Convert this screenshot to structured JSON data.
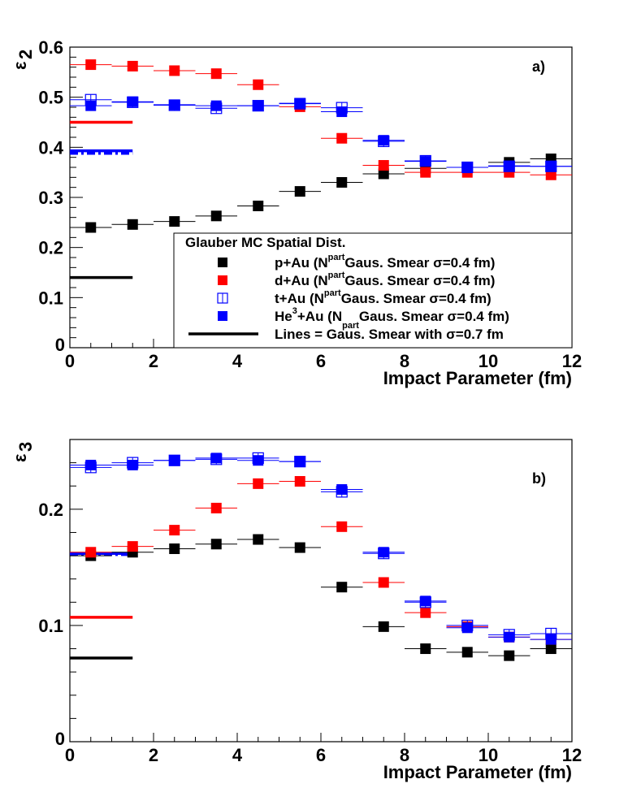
{
  "chart_data": [
    {
      "type": "scatter",
      "panel_label": "a)",
      "xlabel": "Impact Parameter (fm)",
      "ylabel": "ε",
      "ylabel_sub": "2",
      "xlim": [
        0,
        12
      ],
      "ylim": [
        0,
        0.6
      ],
      "xticks": [
        "0",
        "2",
        "4",
        "6",
        "8",
        "10",
        "12"
      ],
      "yticks": [
        "0",
        "0.1",
        "0.2",
        "0.3",
        "0.4",
        "0.5",
        "0.6"
      ],
      "ytick_values": [
        0,
        0.1,
        0.2,
        0.3,
        0.4,
        0.5,
        0.6
      ],
      "x": [
        0.5,
        1.5,
        2.5,
        3.5,
        4.5,
        5.5,
        6.5,
        7.5,
        8.5,
        9.5,
        10.5,
        11.5
      ],
      "series": [
        {
          "name": "p+Au",
          "color": "#000000",
          "marker": "filled",
          "values": [
            0.24,
            0.246,
            0.252,
            0.263,
            0.283,
            0.312,
            0.33,
            0.347,
            0.358,
            0.36,
            0.37,
            0.377
          ]
        },
        {
          "name": "d+Au",
          "color": "#ff0000",
          "marker": "filled",
          "values": [
            0.565,
            0.562,
            0.553,
            0.547,
            0.525,
            0.481,
            0.418,
            0.364,
            0.35,
            0.35,
            0.35,
            0.345
          ]
        },
        {
          "name": "t+Au",
          "color": "#0000ff",
          "marker": "open",
          "values": [
            0.495,
            0.49,
            0.484,
            0.478,
            0.483,
            0.487,
            0.479,
            0.412,
            0.373,
            0.36,
            0.362,
            0.362
          ]
        },
        {
          "name": "He3+Au",
          "color": "#0000ff",
          "marker": "filled",
          "values": [
            0.483,
            0.491,
            0.485,
            0.483,
            0.483,
            0.488,
            0.471,
            0.414,
            0.372,
            0.36,
            0.363,
            0.362
          ]
        }
      ],
      "reference_lines": [
        {
          "name": "d+Au σ=0.7",
          "color": "#ff0000",
          "style": "solid",
          "value": 0.45,
          "x_range": [
            0,
            1.5
          ]
        },
        {
          "name": "t+Au σ=0.7",
          "color": "#0000ff",
          "style": "dashdot",
          "value": 0.388,
          "x_range": [
            0,
            1.5
          ]
        },
        {
          "name": "He3+Au σ=0.7",
          "color": "#0000ff",
          "style": "solid",
          "value": 0.393,
          "x_range": [
            0,
            1.5
          ]
        },
        {
          "name": "p+Au σ=0.7",
          "color": "#000000",
          "style": "solid",
          "value": 0.14,
          "x_range": [
            0,
            1.5
          ]
        }
      ],
      "legend": {
        "title": "Glauber MC Spatial Dist.",
        "placement": "bottom-right",
        "entries": [
          {
            "pre": "p+Au (N",
            "sup": "part",
            "post": "Gaus. Smear  σ=0.4 fm)",
            "color": "#000000",
            "marker": "filled"
          },
          {
            "pre": "d+Au (N",
            "sup": "part",
            "post": "Gaus. Smear  σ=0.4 fm)",
            "color": "#ff0000",
            "marker": "filled"
          },
          {
            "pre": "t+Au (N",
            "sup": "part",
            "post": "Gaus. Smear  σ=0.4 fm)",
            "color": "#0000ff",
            "marker": "open"
          },
          {
            "pre": "He",
            "sup": "3",
            "mid": "+Au (N",
            "sub": "part",
            "post": "Gaus. Smear  σ=0.4 fm)",
            "color": "#0000ff",
            "marker": "filled"
          },
          {
            "pre": "Lines = Gaus. Smear with σ=0.7 fm",
            "color": "#000000",
            "marker": "line"
          }
        ]
      }
    },
    {
      "type": "scatter",
      "panel_label": "b)",
      "xlabel": "Impact Parameter (fm)",
      "ylabel": "ε",
      "ylabel_sub": "3",
      "xlim": [
        0,
        12
      ],
      "ylim": [
        0,
        0.26
      ],
      "xticks": [
        "0",
        "2",
        "4",
        "6",
        "8",
        "10",
        "12"
      ],
      "yticks": [
        "0",
        "0.1",
        "0.2"
      ],
      "ytick_values": [
        0,
        0.1,
        0.2
      ],
      "x": [
        0.5,
        1.5,
        2.5,
        3.5,
        4.5,
        5.5,
        6.5,
        7.5,
        8.5,
        9.5,
        10.5,
        11.5
      ],
      "series": [
        {
          "name": "p+Au",
          "color": "#000000",
          "marker": "filled",
          "values": [
            0.16,
            0.163,
            0.166,
            0.17,
            0.174,
            0.167,
            0.133,
            0.099,
            0.08,
            0.077,
            0.074,
            0.08
          ]
        },
        {
          "name": "d+Au",
          "color": "#ff0000",
          "marker": "filled",
          "values": [
            0.163,
            0.168,
            0.182,
            0.201,
            0.222,
            0.224,
            0.185,
            0.137,
            0.111,
            0.099,
            0.09,
            0.088
          ]
        },
        {
          "name": "t+Au",
          "color": "#0000ff",
          "marker": "open",
          "values": [
            0.236,
            0.24,
            0.242,
            0.243,
            0.244,
            0.241,
            0.215,
            0.162,
            0.12,
            0.1,
            0.092,
            0.093
          ]
        },
        {
          "name": "He3+Au",
          "color": "#0000ff",
          "marker": "filled",
          "values": [
            0.238,
            0.238,
            0.242,
            0.244,
            0.242,
            0.241,
            0.217,
            0.163,
            0.121,
            0.098,
            0.09,
            0.088
          ]
        }
      ],
      "reference_lines": [
        {
          "name": "t+Au σ=0.7",
          "color": "#0000ff",
          "style": "dashdot",
          "value": 0.161,
          "x_range": [
            0,
            1.5
          ]
        },
        {
          "name": "He3+Au σ=0.7",
          "color": "#0000ff",
          "style": "solid",
          "value": 0.162,
          "x_range": [
            0,
            1.5
          ]
        },
        {
          "name": "d+Au σ=0.7",
          "color": "#ff0000",
          "style": "solid",
          "value": 0.107,
          "x_range": [
            0,
            1.5
          ]
        },
        {
          "name": "p+Au σ=0.7",
          "color": "#000000",
          "style": "solid",
          "value": 0.072,
          "x_range": [
            0,
            1.5
          ]
        }
      ]
    }
  ]
}
